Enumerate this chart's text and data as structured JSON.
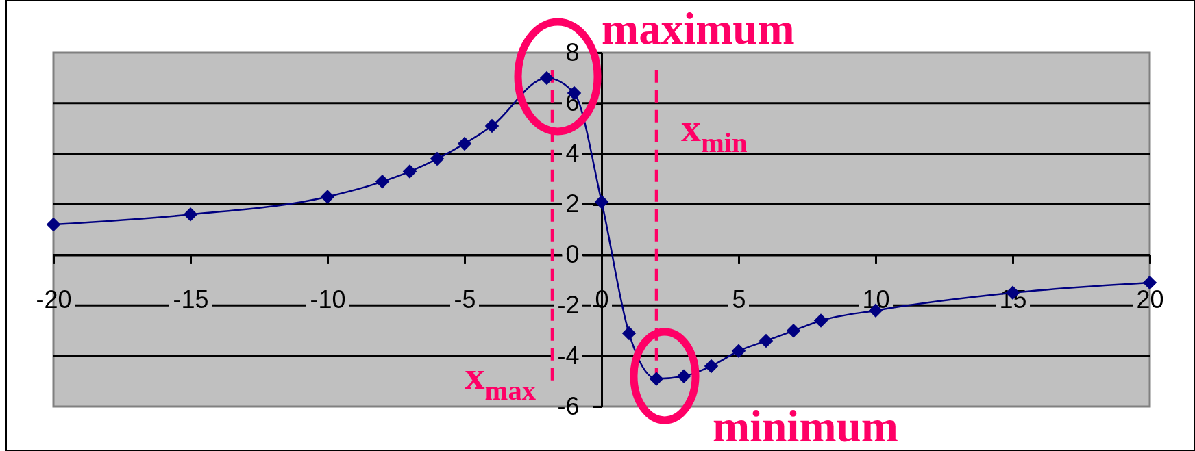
{
  "chart_data": {
    "type": "line",
    "x": [
      -20,
      -15,
      -10,
      -8,
      -7,
      -6,
      -5,
      -4,
      -2,
      -1,
      0,
      1,
      2,
      3,
      4,
      5,
      6,
      7,
      8,
      10,
      15,
      20
    ],
    "series": [
      {
        "color": "#000080",
        "values": [
          1.2,
          1.6,
          2.3,
          2.9,
          3.3,
          3.8,
          4.4,
          5.1,
          7.0,
          6.4,
          2.1,
          -3.1,
          -4.9,
          -4.8,
          -4.4,
          -3.8,
          -3.4,
          -3.0,
          -2.6,
          -2.2,
          -1.5,
          -1.1
        ]
      }
    ],
    "xlim": [
      -20,
      20
    ],
    "xticks": [
      -20,
      -15,
      -10,
      -5,
      0,
      5,
      10,
      15,
      20
    ],
    "ylim": [
      -6,
      8
    ],
    "yticks": [
      -6,
      -4,
      -2,
      0,
      2,
      4,
      6,
      8
    ],
    "grid": "y",
    "marker": "diamond",
    "ref_lines": [
      {
        "axis": "x",
        "value": -1.8,
        "label": "x$_{max}$",
        "color": "#ff0066",
        "line_style": "dashed"
      },
      {
        "axis": "x",
        "value": 2,
        "label": "x$_{min}$",
        "color": "#ff0066",
        "line_style": "dashed"
      }
    ],
    "annotations": [
      {
        "text": "maximum",
        "x": -2,
        "y": 7
      },
      {
        "text": "minimum",
        "x": 2,
        "y": -4.9
      }
    ]
  }
}
